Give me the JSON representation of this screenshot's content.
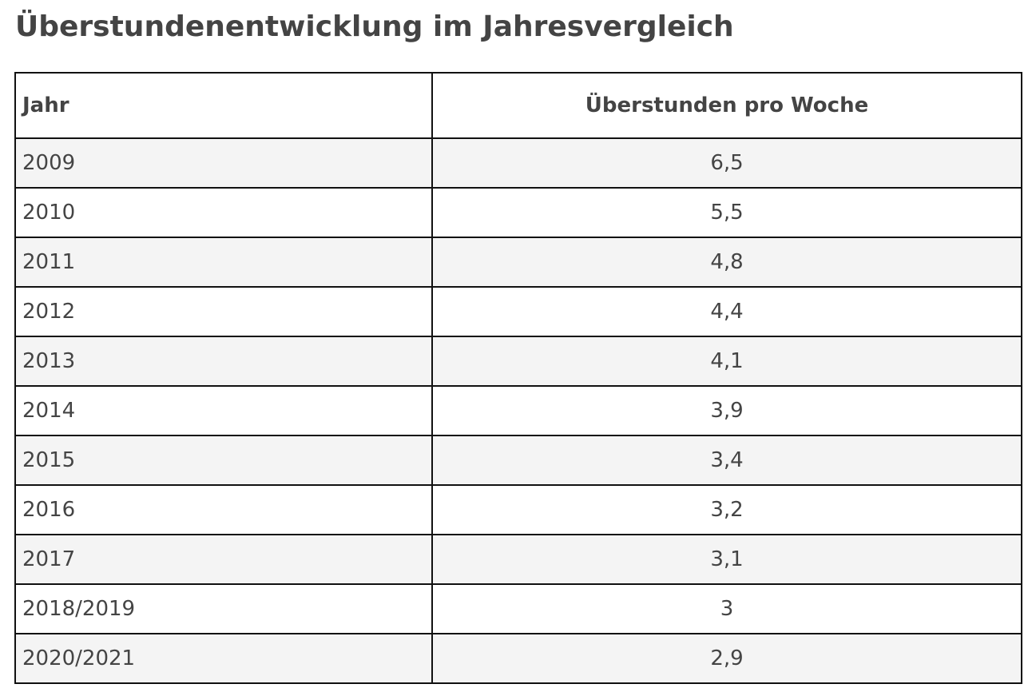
{
  "page": {
    "title": "Überstundenentwicklung im Jahresvergleich"
  },
  "table": {
    "headers": [
      "Jahr",
      "Überstunden pro Woche"
    ],
    "rows": [
      [
        "2009",
        "6,5"
      ],
      [
        "2010",
        "5,5"
      ],
      [
        "2011",
        "4,8"
      ],
      [
        "2012",
        "4,4"
      ],
      [
        "2013",
        "4,1"
      ],
      [
        "2014",
        "3,9"
      ],
      [
        "2015",
        "3,4"
      ],
      [
        "2016",
        "3,2"
      ],
      [
        "2017",
        "3,1"
      ],
      [
        "2018/2019",
        "3"
      ],
      [
        "2020/2021",
        "2,9"
      ]
    ]
  }
}
